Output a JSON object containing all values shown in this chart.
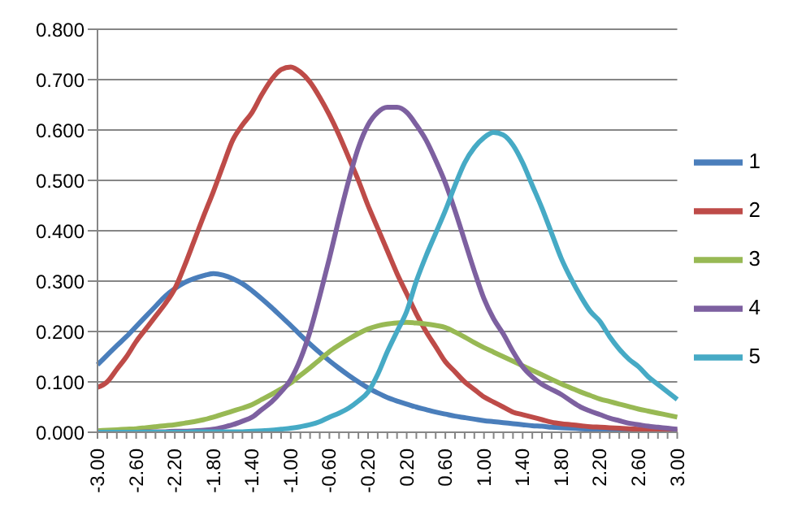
{
  "chart_data": {
    "type": "line",
    "categories": [
      "-3.00",
      null,
      null,
      null,
      "-2.60",
      null,
      null,
      null,
      "-2.20",
      null,
      null,
      null,
      "-1.80",
      null,
      null,
      null,
      "-1.40",
      null,
      null,
      null,
      "-1.00",
      null,
      null,
      null,
      "-0.60",
      null,
      null,
      null,
      "-0.20",
      null,
      null,
      null,
      "0.20",
      null,
      null,
      null,
      "0.60",
      null,
      null,
      null,
      "1.00",
      null,
      null,
      null,
      "1.40",
      null,
      null,
      null,
      "1.80",
      null,
      null,
      null,
      "2.20",
      null,
      null,
      null,
      "2.60",
      null,
      null,
      null,
      "3.00"
    ],
    "series": [
      {
        "name": "1",
        "color": "#4a7ebb",
        "values": [
          0.134,
          0.153,
          0.172,
          0.19,
          0.21,
          0.23,
          0.25,
          0.27,
          0.285,
          0.297,
          0.305,
          0.311,
          0.315,
          0.312,
          0.305,
          0.295,
          0.281,
          0.265,
          0.248,
          0.23,
          0.212,
          0.193,
          0.175,
          0.158,
          0.142,
          0.127,
          0.113,
          0.1,
          0.088,
          0.078,
          0.069,
          0.062,
          0.056,
          0.05,
          0.045,
          0.04,
          0.036,
          0.032,
          0.029,
          0.026,
          0.023,
          0.021,
          0.019,
          0.017,
          0.015,
          0.013,
          0.012,
          0.01,
          0.009,
          0.008,
          0.007,
          0.006,
          0.005,
          0.005,
          0.004,
          0.004,
          0.003,
          0.003,
          0.003,
          0.002,
          0.002
        ]
      },
      {
        "name": "2",
        "color": "#be4b48",
        "values": [
          0.089,
          0.1,
          0.125,
          0.15,
          0.18,
          0.205,
          0.23,
          0.255,
          0.285,
          0.33,
          0.38,
          0.43,
          0.478,
          0.53,
          0.58,
          0.61,
          0.635,
          0.67,
          0.7,
          0.72,
          0.725,
          0.715,
          0.695,
          0.665,
          0.63,
          0.59,
          0.545,
          0.5,
          0.45,
          0.405,
          0.36,
          0.315,
          0.275,
          0.235,
          0.2,
          0.17,
          0.14,
          0.12,
          0.1,
          0.085,
          0.07,
          0.06,
          0.05,
          0.04,
          0.035,
          0.03,
          0.025,
          0.02,
          0.017,
          0.015,
          0.013,
          0.011,
          0.01,
          0.009,
          0.008,
          0.007,
          0.006,
          0.005,
          0.004,
          0.003,
          0.003
        ]
      },
      {
        "name": "3",
        "color": "#98b954",
        "values": [
          0.003,
          0.004,
          0.005,
          0.006,
          0.007,
          0.009,
          0.011,
          0.013,
          0.015,
          0.018,
          0.021,
          0.025,
          0.03,
          0.036,
          0.042,
          0.048,
          0.055,
          0.065,
          0.075,
          0.086,
          0.098,
          0.113,
          0.128,
          0.144,
          0.16,
          0.173,
          0.185,
          0.196,
          0.205,
          0.211,
          0.215,
          0.217,
          0.218,
          0.217,
          0.215,
          0.212,
          0.208,
          0.199,
          0.189,
          0.178,
          0.168,
          0.159,
          0.15,
          0.141,
          0.132,
          0.123,
          0.114,
          0.105,
          0.096,
          0.088,
          0.08,
          0.073,
          0.066,
          0.061,
          0.056,
          0.051,
          0.046,
          0.042,
          0.038,
          0.034,
          0.03
        ]
      },
      {
        "name": "4",
        "color": "#7d60a0",
        "values": [
          0,
          0,
          0,
          0,
          0,
          0.001,
          0.001,
          0.001,
          0.002,
          0.002,
          0.003,
          0.004,
          0.006,
          0.01,
          0.015,
          0.022,
          0.03,
          0.045,
          0.06,
          0.08,
          0.105,
          0.145,
          0.2,
          0.27,
          0.345,
          0.425,
          0.5,
          0.565,
          0.61,
          0.635,
          0.645,
          0.645,
          0.635,
          0.61,
          0.58,
          0.54,
          0.495,
          0.44,
          0.38,
          0.32,
          0.265,
          0.225,
          0.195,
          0.16,
          0.13,
          0.11,
          0.095,
          0.085,
          0.075,
          0.062,
          0.05,
          0.042,
          0.035,
          0.028,
          0.023,
          0.018,
          0.015,
          0.012,
          0.01,
          0.008,
          0.006
        ]
      },
      {
        "name": "5",
        "color": "#46aac5",
        "values": [
          0,
          0,
          0,
          0,
          0,
          0,
          0,
          0,
          0,
          0,
          0.001,
          0.001,
          0.001,
          0.001,
          0.001,
          0.001,
          0.002,
          0.003,
          0.004,
          0.006,
          0.008,
          0.011,
          0.015,
          0.021,
          0.03,
          0.038,
          0.048,
          0.062,
          0.08,
          0.115,
          0.16,
          0.2,
          0.24,
          0.3,
          0.35,
          0.395,
          0.44,
          0.49,
          0.535,
          0.565,
          0.585,
          0.595,
          0.59,
          0.57,
          0.535,
          0.49,
          0.445,
          0.395,
          0.345,
          0.305,
          0.27,
          0.24,
          0.22,
          0.19,
          0.165,
          0.145,
          0.13,
          0.11,
          0.095,
          0.08,
          0.065
        ]
      }
    ],
    "ylim": [
      0,
      0.8
    ],
    "yticks": [
      {
        "value": 0,
        "label": "0.000"
      },
      {
        "value": 0.1,
        "label": "0.100"
      },
      {
        "value": 0.2,
        "label": "0.200"
      },
      {
        "value": 0.3,
        "label": "0.300"
      },
      {
        "value": 0.4,
        "label": "0.400"
      },
      {
        "value": 0.5,
        "label": "0.500"
      },
      {
        "value": 0.6,
        "label": "0.600"
      },
      {
        "value": 0.7,
        "label": "0.700"
      },
      {
        "value": 0.8,
        "label": "0.800"
      }
    ],
    "grid": "y",
    "legend": "right"
  }
}
